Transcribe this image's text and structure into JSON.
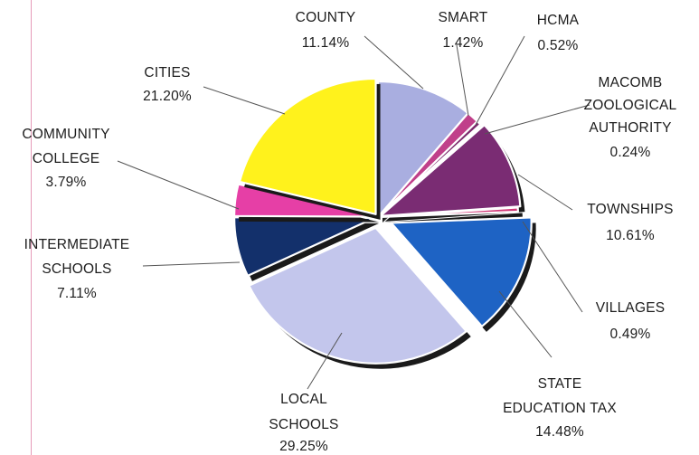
{
  "chart_data": {
    "type": "pie",
    "title": "",
    "slices": [
      {
        "label_lines": [
          "COUNTY"
        ],
        "value_text": "11.14%",
        "value": 11.14,
        "color": "#a9aee0"
      },
      {
        "label_lines": [
          "SMART"
        ],
        "value_text": "1.42%",
        "value": 1.42,
        "color": "#c0408a"
      },
      {
        "label_lines": [
          "HCMA"
        ],
        "value_text": "0.52%",
        "value": 0.52,
        "color": "#7b2a6c"
      },
      {
        "label_lines": [
          "MACOMB",
          "ZOOLOGICAL",
          "AUTHORITY"
        ],
        "value_text": "0.24%",
        "value": 0.24,
        "color": "#5b1f57"
      },
      {
        "label_lines": [
          "TOWNSHIPS"
        ],
        "value_text": "10.61%",
        "value": 10.61,
        "color": "#7a2c73"
      },
      {
        "label_lines": [
          "VILLAGES"
        ],
        "value_text": "0.49%",
        "value": 0.49,
        "color": "#d23a78"
      },
      {
        "label_lines": [
          "STATE",
          "EDUCATION TAX"
        ],
        "value_text": "14.48%",
        "value": 14.48,
        "color": "#1e63c4"
      },
      {
        "label_lines": [
          "LOCAL",
          "SCHOOLS"
        ],
        "value_text": "29.25%",
        "value": 29.25,
        "color": "#c3c6ec"
      },
      {
        "label_lines": [
          "INTERMEDIATE",
          "SCHOOLS"
        ],
        "value_text": "7.11%",
        "value": 7.11,
        "color": "#13306b"
      },
      {
        "label_lines": [
          "COMMUNITY",
          "COLLEGE"
        ],
        "value_text": "3.79%",
        "value": 3.79,
        "color": "#e63fa6"
      },
      {
        "label_lines": [
          "CITIES"
        ],
        "value_text": "21.20%",
        "value": 21.2,
        "color": "#fff21c"
      }
    ]
  }
}
